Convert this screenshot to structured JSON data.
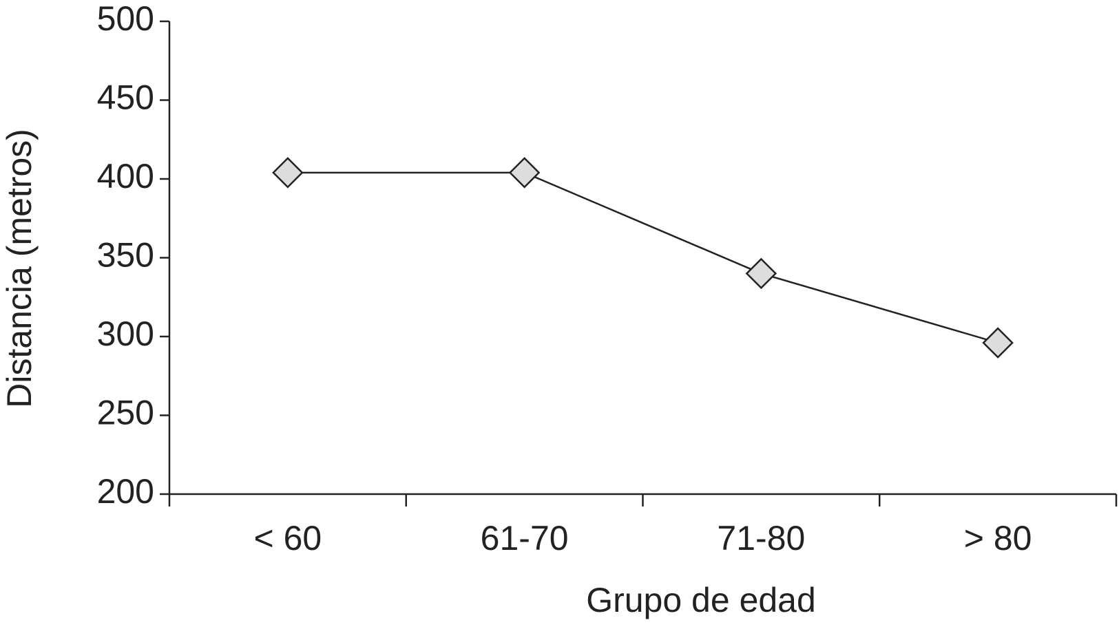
{
  "chart_data": {
    "type": "line",
    "x_label": "Grupo de edad",
    "y_label": "Distancia (metros)",
    "categories": [
      "< 60",
      "61-70",
      "71-80",
      "> 80"
    ],
    "values": [
      404,
      404,
      340,
      296
    ],
    "color": "#222222",
    "marker_fill": "#dddddd",
    "ylim": [
      200,
      500
    ],
    "yticks": [
      200,
      250,
      300,
      350,
      400,
      450,
      500
    ],
    "grid": false
  }
}
